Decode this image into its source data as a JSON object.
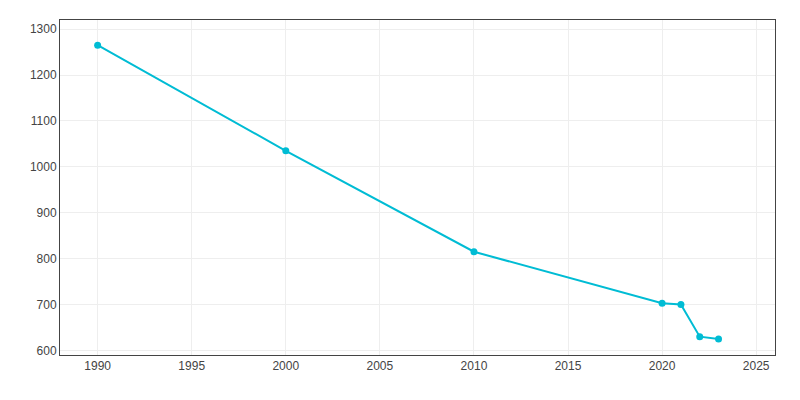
{
  "chart_data": {
    "type": "line",
    "x": [
      1990,
      2000,
      2010,
      2020,
      2021,
      2022,
      2023
    ],
    "values": [
      1265,
      1035,
      815,
      703,
      700,
      630,
      625
    ],
    "color": "#00BCD4",
    "marker": "circle",
    "xlim": [
      1988,
      2026
    ],
    "ylim": [
      590,
      1320
    ],
    "xticks": [
      1990,
      1995,
      2000,
      2005,
      2010,
      2015,
      2020,
      2025
    ],
    "yticks": [
      600,
      700,
      800,
      900,
      1000,
      1100,
      1200,
      1300
    ],
    "grid": true
  }
}
